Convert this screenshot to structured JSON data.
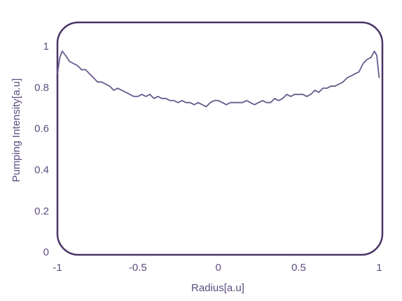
{
  "chart_data": {
    "type": "line",
    "x_label": "Radius[a.u]",
    "y_label": "Pumping Intensity[a.u]",
    "x": [
      -1,
      -0.985,
      -0.97,
      -0.95,
      -0.925,
      -0.9,
      -0.875,
      -0.85,
      -0.825,
      -0.8,
      -0.775,
      -0.75,
      -0.725,
      -0.7,
      -0.675,
      -0.65,
      -0.625,
      -0.6,
      -0.575,
      -0.55,
      -0.525,
      -0.5,
      -0.475,
      -0.45,
      -0.425,
      -0.4,
      -0.375,
      -0.35,
      -0.325,
      -0.3,
      -0.275,
      -0.25,
      -0.225,
      -0.2,
      -0.175,
      -0.15,
      -0.125,
      -0.1,
      -0.075,
      -0.05,
      -0.025,
      0,
      0.025,
      0.05,
      0.075,
      0.1,
      0.125,
      0.15,
      0.175,
      0.2,
      0.225,
      0.25,
      0.275,
      0.3,
      0.325,
      0.35,
      0.375,
      0.4,
      0.425,
      0.45,
      0.475,
      0.5,
      0.525,
      0.55,
      0.575,
      0.6,
      0.625,
      0.65,
      0.675,
      0.7,
      0.725,
      0.75,
      0.775,
      0.8,
      0.825,
      0.85,
      0.875,
      0.9,
      0.925,
      0.95,
      0.97,
      0.985,
      1.0
    ],
    "values": [
      0.87,
      0.95,
      0.98,
      0.96,
      0.93,
      0.92,
      0.91,
      0.89,
      0.89,
      0.87,
      0.85,
      0.83,
      0.83,
      0.82,
      0.81,
      0.79,
      0.8,
      0.79,
      0.78,
      0.77,
      0.76,
      0.76,
      0.77,
      0.76,
      0.77,
      0.75,
      0.76,
      0.75,
      0.75,
      0.74,
      0.74,
      0.73,
      0.74,
      0.73,
      0.73,
      0.72,
      0.73,
      0.72,
      0.71,
      0.73,
      0.74,
      0.74,
      0.73,
      0.72,
      0.73,
      0.73,
      0.73,
      0.73,
      0.74,
      0.73,
      0.72,
      0.73,
      0.74,
      0.73,
      0.73,
      0.75,
      0.74,
      0.75,
      0.77,
      0.76,
      0.77,
      0.77,
      0.77,
      0.76,
      0.77,
      0.79,
      0.78,
      0.8,
      0.8,
      0.81,
      0.81,
      0.82,
      0.83,
      0.85,
      0.86,
      0.87,
      0.88,
      0.92,
      0.94,
      0.95,
      0.98,
      0.96,
      0.85
    ],
    "color": "#6a5a8c",
    "xlim": [
      -1,
      1.02
    ],
    "ylim": [
      -0.01,
      1.12
    ],
    "xticks": [
      -1,
      -0.5,
      0,
      0.5,
      1
    ],
    "yticks": [
      0,
      0.2,
      0.4,
      0.6,
      0.8,
      1
    ],
    "grid": false
  }
}
